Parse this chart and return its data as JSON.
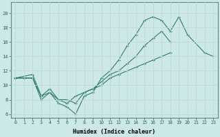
{
  "xlabel": "Humidex (Indice chaleur)",
  "bg_color": "#cde8e8",
  "grid_color": "#c0d8d8",
  "line_color": "#2e7b6e",
  "xlim": [
    -0.5,
    23.5
  ],
  "ylim": [
    5.5,
    21.5
  ],
  "xticks": [
    0,
    1,
    2,
    3,
    4,
    5,
    6,
    7,
    8,
    9,
    10,
    11,
    12,
    13,
    14,
    15,
    16,
    17,
    18,
    19,
    20,
    21,
    22,
    23
  ],
  "yticks": [
    6,
    8,
    10,
    12,
    14,
    16,
    18,
    20
  ],
  "line1_x": [
    0,
    1,
    2,
    3,
    4,
    5,
    6,
    7,
    8,
    9,
    10,
    11,
    12,
    13,
    14,
    15,
    16,
    17,
    18,
    19,
    20,
    22,
    23
  ],
  "line1_y": [
    11,
    11,
    11,
    8,
    9,
    7.5,
    7,
    6,
    8.5,
    9,
    11,
    12,
    13.5,
    15.5,
    17,
    19,
    19.5,
    19,
    17.5,
    19.5,
    17,
    14.5,
    14
  ],
  "line2_x": [
    0,
    1,
    2,
    3,
    4,
    5,
    6,
    7,
    8,
    9,
    10,
    11,
    12,
    13,
    14,
    15,
    16,
    17,
    18,
    19,
    20,
    22,
    23
  ],
  "line2_y": [
    11,
    11,
    11,
    8.5,
    9,
    8,
    7.5,
    8.5,
    9,
    9.5,
    10.5,
    11.5,
    12,
    13,
    14,
    15.5,
    16.5,
    17.5,
    16,
    null,
    null,
    null,
    null
  ],
  "line3_x": [
    0,
    2,
    3,
    4,
    5,
    6,
    7,
    8,
    9,
    10,
    11,
    12,
    13,
    14,
    15,
    16,
    17,
    18,
    20,
    22,
    23
  ],
  "line3_y": [
    11,
    11.5,
    8.5,
    9.5,
    8,
    8,
    7.5,
    9,
    9.5,
    10,
    11,
    11.5,
    12,
    12.5,
    13,
    13.5,
    14,
    14.5,
    null,
    null,
    null
  ]
}
